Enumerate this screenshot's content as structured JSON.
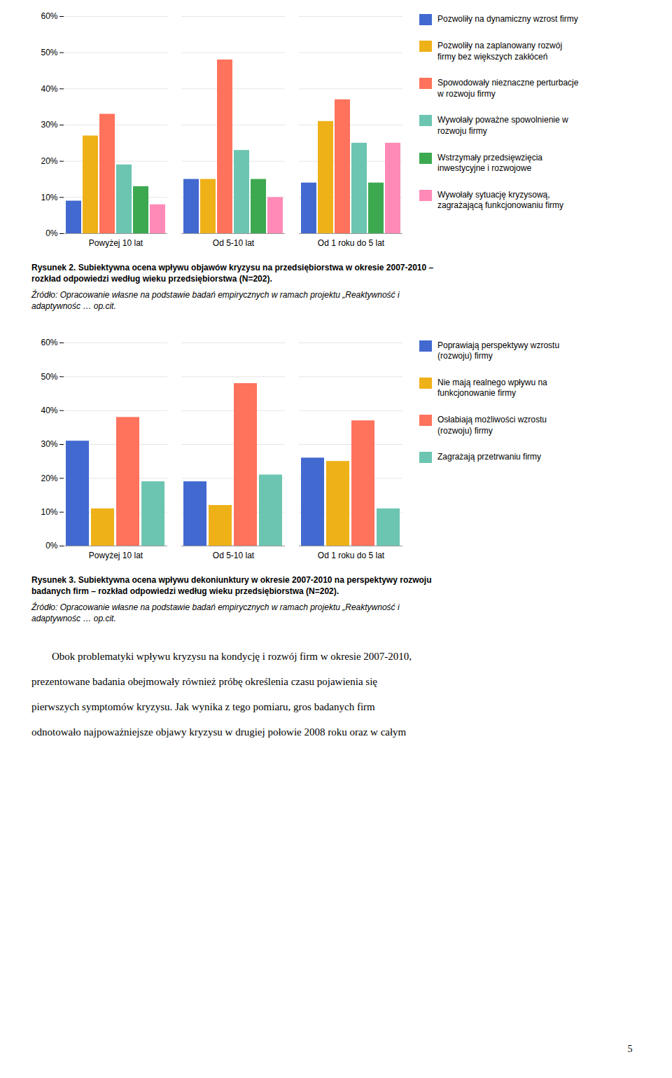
{
  "chart_data": [
    {
      "type": "bar",
      "title": "Rysunek 2. Subiektywna ocena wpływu objawów kryzysu na przedsiębiorstwa w okresie 2007-2010 –\nrozkład odpowiedzi według wieku przedsiębiorstwa (N=202).",
      "annotations": [
        "Źródło: Opracowanie własne na podstawie badań empirycznych w ramach projektu „Reaktywność i\nadaptywnośc … op.cit."
      ],
      "categories": [
        "Powyżej 10 lat",
        "Od 5-10 lat",
        "Od 1 roku do 5 lat"
      ],
      "series": [
        {
          "name": "Pozwoliły na dynamiczny wzrost firmy",
          "values": [
            9,
            15,
            14
          ]
        },
        {
          "name": "Pozwoliły na zaplanowany rozwój\nfirmy bez większych zakłóceń",
          "values": [
            27,
            15,
            31
          ]
        },
        {
          "name": "Spowodowały nieznaczne perturbacje\nw rozwoju firmy",
          "values": [
            33,
            48,
            37
          ]
        },
        {
          "name": "Wywołały poważne spowolnienie w\nrozwoju firmy",
          "values": [
            19,
            23,
            25
          ]
        },
        {
          "name": "Wstrzymały przedsięwzięcia\ninwestycyjne i rozwojowe",
          "values": [
            13,
            15,
            14
          ]
        },
        {
          "name": "Wywołały sytuację kryzysową,\nzagrażającą funkcjonowaniu firmy",
          "values": [
            8,
            10,
            25
          ]
        }
      ],
      "ylim": [
        0,
        60
      ],
      "yticks": [
        {
          "value": 0,
          "label": "0%"
        },
        {
          "value": 10,
          "label": "10%"
        },
        {
          "value": 20,
          "label": "20%"
        },
        {
          "value": 30,
          "label": "30%"
        },
        {
          "value": 40,
          "label": "40%"
        },
        {
          "value": 50,
          "label": "50%"
        },
        {
          "value": 60,
          "label": "60%"
        }
      ],
      "grid": true,
      "legend": "right"
    },
    {
      "type": "bar",
      "title": "Rysunek 3. Subiektywna ocena wpływu dekoniunktury w okresie 2007-2010 na perspektywy rozwoju\nbadanych firm – rozkład odpowiedzi według wieku przedsiębiorstwa (N=202).",
      "annotations": [
        "Źródło: Opracowanie własne na podstawie badań empirycznych w ramach projektu „Reaktywność i\nadaptywnośc … op.cit."
      ],
      "categories": [
        "Powyżej 10 lat",
        "Od 5-10 lat",
        "Od 1 roku do 5 lat"
      ],
      "series": [
        {
          "name": "Poprawiają perspektywy wzrostu\n(rozwoju) firmy",
          "values": [
            31,
            19,
            26
          ]
        },
        {
          "name": "Nie mają realnego wpływu na\nfunkcjonowanie firmy",
          "values": [
            11,
            12,
            25
          ]
        },
        {
          "name": "Osłabiają możliwości wzrostu\n(rozwoju) firmy",
          "values": [
            38,
            48,
            37
          ]
        },
        {
          "name": "Zagrażają przetrwaniu firmy",
          "values": [
            19,
            21,
            11
          ]
        }
      ],
      "ylim": [
        0,
        60
      ],
      "yticks": [
        {
          "value": 0,
          "label": "0%"
        },
        {
          "value": 10,
          "label": "10%"
        },
        {
          "value": 20,
          "label": "20%"
        },
        {
          "value": 30,
          "label": "30%"
        },
        {
          "value": 40,
          "label": "40%"
        },
        {
          "value": 50,
          "label": "50%"
        },
        {
          "value": 60,
          "label": "60%"
        }
      ],
      "grid": true,
      "legend": "right"
    }
  ],
  "body_text": [
    "Obok problematyki wpływu kryzysu na kondycję i rozwój firm w okresie 2007-2010,",
    "prezentowane badania obejmowały również próbę określenia czasu pojawienia się",
    "pierwszych symptomów kryzysu. Jak wynika z tego pomiaru, gros badanych firm",
    "odnotowało najpoważniejsze objawy kryzysu w drugiej połowie 2008 roku oraz w całym"
  ],
  "page_number": "5"
}
